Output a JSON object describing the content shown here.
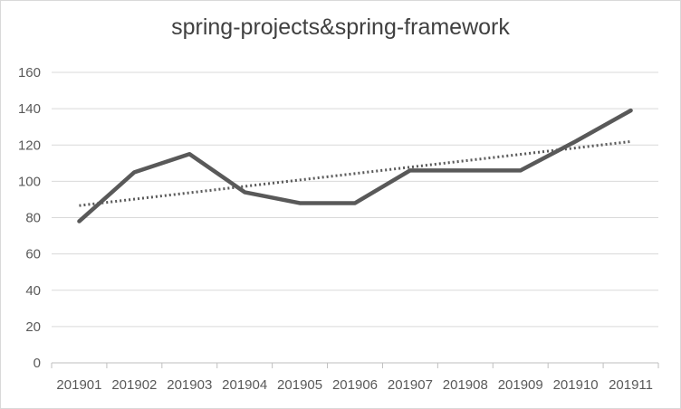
{
  "chart_data": {
    "type": "line",
    "title": "spring-projects&spring-framework",
    "xlabel": "",
    "ylabel": "",
    "categories": [
      "201901",
      "201902",
      "201903",
      "201904",
      "201905",
      "201906",
      "201907",
      "201908",
      "201909",
      "201910",
      "201911"
    ],
    "series": [
      {
        "values": [
          78,
          105,
          115,
          94,
          88,
          88,
          106,
          106,
          106,
          122,
          139
        ],
        "color": "#595959",
        "style": "solid"
      }
    ],
    "trendline": {
      "type": "linear",
      "color": "#595959",
      "style": "dotted"
    },
    "ylim": [
      0,
      160
    ],
    "yticks": [
      0,
      20,
      40,
      60,
      80,
      100,
      120,
      140,
      160
    ],
    "grid": true,
    "legend": "none"
  }
}
